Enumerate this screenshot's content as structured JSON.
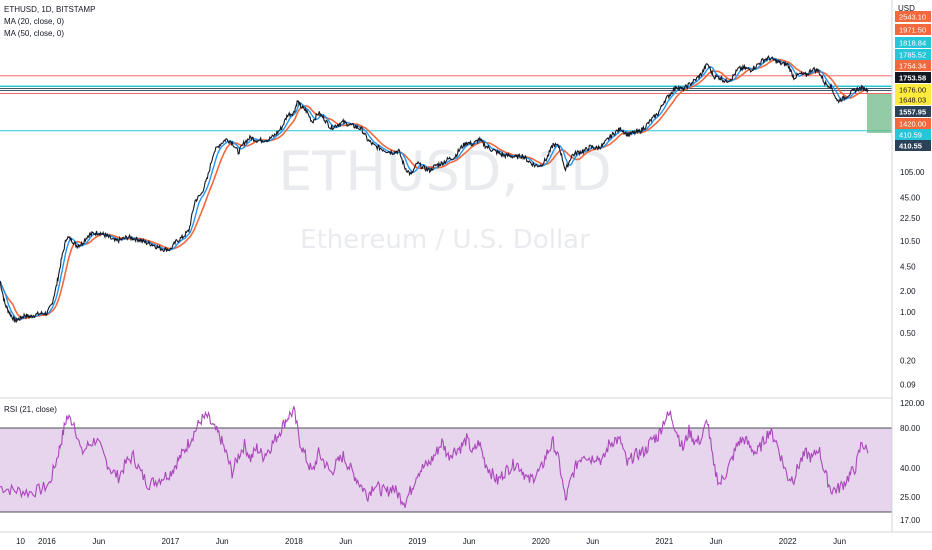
{
  "header": {
    "symbol_line": "ETHUSD, 1D, BITSTAMP",
    "ma20_label": "MA (20, close, 0)",
    "ma50_label": "MA (50, close, 0)",
    "currency": "USD"
  },
  "watermark": {
    "ticker": "ETHUSD, 1D",
    "description": "Ethereum / U.S. Dollar"
  },
  "rsi_panel": {
    "label": "RSI (21, close)"
  },
  "colors": {
    "price_line": "#131722",
    "ma20": "#2196f3",
    "ma50": "#f4683d",
    "rsi": "#ab47bc",
    "rsi_band_fill": "#d1b3dd",
    "level_red": "#ef5350",
    "level_cyan": "#26c6da",
    "level_navy": "#2a4158",
    "green_box": "#6fb98a"
  },
  "chart_data": [
    {
      "type": "line",
      "title": "ETHUSD, 1D, BITSTAMP",
      "scale": "log",
      "ylabel": "USD",
      "y_ticks": [
        0.09,
        0.2,
        0.5,
        1.0,
        2.0,
        4.5,
        10.5,
        22.5,
        45.0,
        105.0
      ],
      "y_tag_labels": [
        {
          "value": "2543.10",
          "color": "#f4683d"
        },
        {
          "value": "1971.50",
          "color": "#f4683d"
        },
        {
          "value": "1818.84",
          "color": "#26c6da"
        },
        {
          "value": "1785.52",
          "color": "#26c6da"
        },
        {
          "value": "1754.34",
          "color": "#f4683d"
        },
        {
          "value": "1753.58",
          "color": "#131722"
        },
        {
          "value": "1676.00",
          "color": "#ffeb3b"
        },
        {
          "value": "1648.03",
          "color": "#ffeb3b"
        },
        {
          "value": "1557.95",
          "color": "#2a4158"
        },
        {
          "value": "1420.00",
          "color": "#f4683d"
        },
        {
          "value": "410.59",
          "color": "#26c6da"
        },
        {
          "value": "410.55",
          "color": "#2a4158"
        }
      ],
      "x_tick_labels": [
        "10",
        "2016",
        "Jun",
        "2017",
        "Jun",
        "2018",
        "Jun",
        "2019",
        "Jun",
        "2020",
        "Jun",
        "2021",
        "Jun",
        "2022",
        "Jun"
      ],
      "x_ticks_years": [
        2015.75,
        2016.0,
        2016.42,
        2017.0,
        2017.42,
        2018.0,
        2018.42,
        2019.0,
        2019.42,
        2020.0,
        2020.42,
        2021.0,
        2021.42,
        2022.0,
        2022.42
      ],
      "horizontal_levels": [
        {
          "value": 2543.1,
          "color": "#ef5350"
        },
        {
          "value": 1818.84,
          "color": "#26c6da"
        },
        {
          "value": 1785.52,
          "color": "#26c6da"
        },
        {
          "value": 1676.0,
          "color": "#2a4158"
        },
        {
          "value": 1557.95,
          "color": "#2a4158"
        },
        {
          "value": 1420.0,
          "color": "#ef5350"
        },
        {
          "value": 410.59,
          "color": "#26c6da"
        }
      ],
      "series": [
        {
          "name": "ETHUSD",
          "x": [
            2015.62,
            2015.66,
            2015.7,
            2015.74,
            2015.78,
            2015.82,
            2015.86,
            2015.9,
            2015.95,
            2016.0,
            2016.04,
            2016.08,
            2016.12,
            2016.16,
            2016.2,
            2016.24,
            2016.28,
            2016.33,
            2016.37,
            2016.42,
            2016.46,
            2016.5,
            2016.55,
            2016.6,
            2016.65,
            2016.7,
            2016.75,
            2016.8,
            2016.85,
            2016.9,
            2016.95,
            2017.0,
            2017.05,
            2017.1,
            2017.15,
            2017.2,
            2017.25,
            2017.3,
            2017.35,
            2017.4,
            2017.45,
            2017.5,
            2017.55,
            2017.6,
            2017.65,
            2017.7,
            2017.75,
            2017.8,
            2017.85,
            2017.9,
            2017.95,
            2018.0,
            2018.03,
            2018.06,
            2018.1,
            2018.15,
            2018.2,
            2018.25,
            2018.3,
            2018.35,
            2018.4,
            2018.45,
            2018.5,
            2018.55,
            2018.6,
            2018.65,
            2018.7,
            2018.75,
            2018.8,
            2018.85,
            2018.9,
            2018.95,
            2019.0,
            2019.05,
            2019.1,
            2019.15,
            2019.2,
            2019.25,
            2019.3,
            2019.35,
            2019.4,
            2019.45,
            2019.5,
            2019.55,
            2019.6,
            2019.65,
            2019.7,
            2019.75,
            2019.8,
            2019.85,
            2019.9,
            2019.95,
            2020.0,
            2020.05,
            2020.1,
            2020.15,
            2020.2,
            2020.25,
            2020.3,
            2020.35,
            2020.4,
            2020.45,
            2020.5,
            2020.55,
            2020.6,
            2020.65,
            2020.7,
            2020.75,
            2020.8,
            2020.85,
            2020.9,
            2020.95,
            2021.0,
            2021.05,
            2021.1,
            2021.15,
            2021.2,
            2021.25,
            2021.3,
            2021.35,
            2021.4,
            2021.45,
            2021.5,
            2021.55,
            2021.6,
            2021.65,
            2021.7,
            2021.75,
            2021.8,
            2021.85,
            2021.9,
            2021.95,
            2022.0,
            2022.05,
            2022.1,
            2022.15,
            2022.2,
            2022.25,
            2022.3,
            2022.35,
            2022.4,
            2022.45,
            2022.5,
            2022.55,
            2022.6,
            2022.65
          ],
          "values": [
            2.8,
            1.3,
            0.95,
            0.75,
            0.8,
            0.9,
            0.85,
            0.9,
            0.95,
            0.95,
            1.3,
            2.5,
            6.0,
            12.0,
            11.0,
            9.0,
            9.5,
            12.5,
            13.5,
            14.0,
            13.0,
            12.0,
            10.5,
            11.0,
            12.0,
            11.5,
            11.0,
            10.0,
            9.5,
            8.5,
            8.0,
            8.0,
            10.5,
            12.0,
            15.0,
            40.0,
            50.0,
            85.0,
            200.0,
            260.0,
            310.0,
            280.0,
            200.0,
            280.0,
            330.0,
            300.0,
            300.0,
            310.0,
            360.0,
            450.0,
            700.0,
            750.0,
            1100.0,
            900.0,
            800.0,
            550.0,
            750.0,
            600.0,
            450.0,
            500.0,
            550.0,
            500.0,
            470.0,
            430.0,
            300.0,
            250.0,
            230.0,
            210.0,
            200.0,
            210.0,
            120.0,
            95.0,
            140.0,
            120.0,
            110.0,
            130.0,
            140.0,
            160.0,
            170.0,
            230.0,
            280.0,
            260.0,
            310.0,
            250.0,
            220.0,
            200.0,
            180.0,
            180.0,
            170.0,
            180.0,
            150.0,
            130.0,
            130.0,
            165.0,
            260.0,
            240.0,
            110.0,
            180.0,
            200.0,
            210.0,
            240.0,
            230.0,
            250.0,
            320.0,
            390.0,
            440.0,
            360.0,
            380.0,
            400.0,
            480.0,
            600.0,
            730.0,
            1100.0,
            1400.0,
            1800.0,
            1600.0,
            1900.0,
            2200.0,
            2700.0,
            3800.0,
            2500.0,
            2400.0,
            2100.0,
            2400.0,
            3200.0,
            3300.0,
            3100.0,
            3600.0,
            4300.0,
            4600.0,
            4200.0,
            3800.0,
            3700.0,
            2400.0,
            2700.0,
            2600.0,
            3200.0,
            3000.0,
            2000.0,
            1800.0,
            1100.0,
            1200.0,
            1400.0,
            1600.0,
            1700.0,
            1600.0
          ]
        }
      ]
    },
    {
      "type": "line",
      "title": "RSI (21, close)",
      "y_ticks": [
        17.0,
        25.0,
        40.0,
        80.0,
        120.0
      ],
      "bands": [
        20,
        80
      ],
      "series": [
        {
          "name": "RSI",
          "x": [
            2015.62,
            2015.7,
            2015.78,
            2015.86,
            2015.95,
            2016.02,
            2016.08,
            2016.12,
            2016.16,
            2016.22,
            2016.28,
            2016.34,
            2016.4,
            2016.46,
            2016.52,
            2016.58,
            2016.64,
            2016.7,
            2016.76,
            2016.82,
            2016.88,
            2016.94,
            2017.0,
            2017.05,
            2017.1,
            2017.15,
            2017.2,
            2017.25,
            2017.3,
            2017.35,
            2017.4,
            2017.45,
            2017.5,
            2017.55,
            2017.6,
            2017.65,
            2017.7,
            2017.75,
            2017.8,
            2017.85,
            2017.9,
            2017.95,
            2018.0,
            2018.05,
            2018.1,
            2018.15,
            2018.2,
            2018.25,
            2018.3,
            2018.35,
            2018.4,
            2018.45,
            2018.5,
            2018.55,
            2018.6,
            2018.65,
            2018.7,
            2018.75,
            2018.8,
            2018.85,
            2018.9,
            2018.95,
            2019.0,
            2019.05,
            2019.1,
            2019.15,
            2019.2,
            2019.25,
            2019.3,
            2019.35,
            2019.4,
            2019.45,
            2019.5,
            2019.55,
            2019.6,
            2019.65,
            2019.7,
            2019.75,
            2019.8,
            2019.85,
            2019.9,
            2019.95,
            2020.0,
            2020.05,
            2020.1,
            2020.15,
            2020.2,
            2020.25,
            2020.3,
            2020.35,
            2020.4,
            2020.45,
            2020.5,
            2020.55,
            2020.6,
            2020.65,
            2020.7,
            2020.75,
            2020.8,
            2020.85,
            2020.9,
            2020.95,
            2021.0,
            2021.05,
            2021.1,
            2021.15,
            2021.2,
            2021.25,
            2021.3,
            2021.35,
            2021.4,
            2021.45,
            2021.5,
            2021.55,
            2021.6,
            2021.65,
            2021.7,
            2021.75,
            2021.8,
            2021.85,
            2021.9,
            2021.95,
            2022.0,
            2022.05,
            2022.1,
            2022.15,
            2022.2,
            2022.25,
            2022.3,
            2022.35,
            2022.4,
            2022.45,
            2022.5,
            2022.55,
            2022.6,
            2022.65
          ],
          "values": [
            38,
            36,
            35,
            34,
            36,
            40,
            58,
            72,
            88,
            84,
            62,
            68,
            72,
            60,
            50,
            45,
            55,
            60,
            48,
            40,
            42,
            45,
            48,
            55,
            62,
            70,
            78,
            86,
            88,
            80,
            74,
            62,
            48,
            60,
            68,
            58,
            66,
            60,
            65,
            72,
            80,
            88,
            92,
            70,
            58,
            48,
            62,
            55,
            48,
            55,
            60,
            52,
            45,
            38,
            32,
            40,
            36,
            34,
            38,
            32,
            27,
            36,
            48,
            52,
            55,
            62,
            70,
            60,
            64,
            66,
            72,
            62,
            70,
            55,
            48,
            42,
            48,
            52,
            55,
            50,
            42,
            46,
            50,
            62,
            70,
            55,
            28,
            45,
            56,
            62,
            58,
            60,
            56,
            68,
            72,
            70,
            54,
            60,
            62,
            64,
            72,
            74,
            86,
            90,
            78,
            65,
            78,
            70,
            72,
            86,
            52,
            40,
            48,
            58,
            70,
            72,
            66,
            62,
            70,
            78,
            72,
            58,
            45,
            44,
            56,
            62,
            58,
            66,
            48,
            36,
            36,
            40,
            46,
            52,
            70,
            62
          ]
        }
      ]
    }
  ]
}
